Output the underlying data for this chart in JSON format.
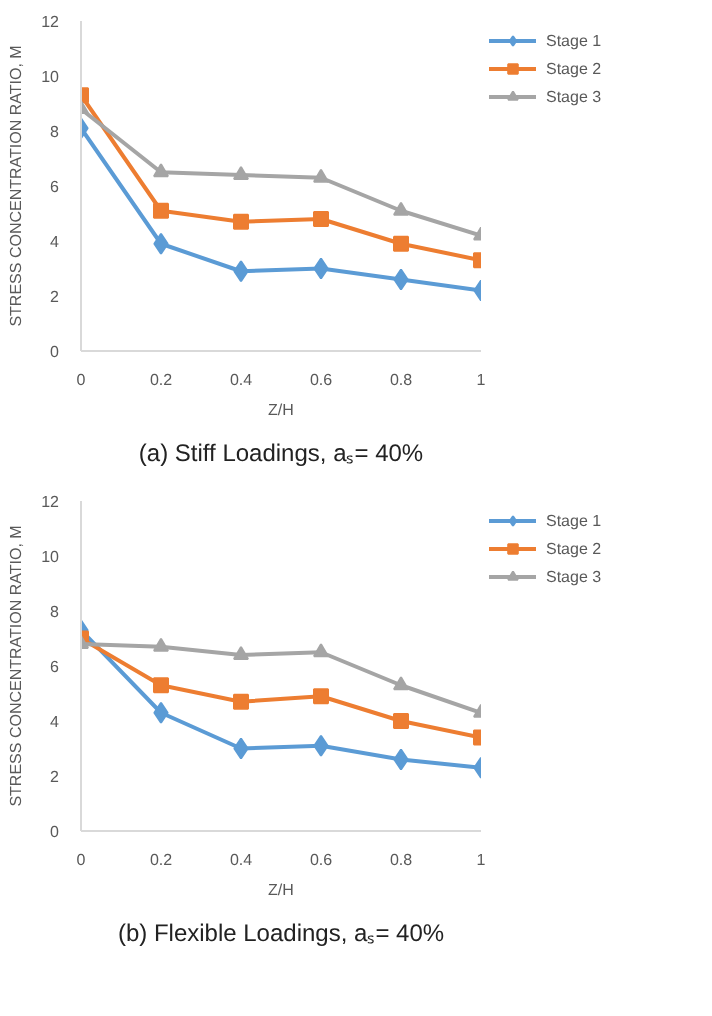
{
  "chart_data": [
    {
      "type": "line",
      "xlabel": "Z/H",
      "ylabel": "STRESS CONCENTRATION RATIO, M",
      "annotations": [
        "(a) Stiff Loadings, aₛ= 40%"
      ],
      "x": [
        0,
        0.2,
        0.4,
        0.6,
        0.8,
        1
      ],
      "xlim": [
        0,
        1
      ],
      "xticks": [
        0,
        0.2,
        0.4,
        0.6,
        0.8,
        1
      ],
      "ylim": [
        0,
        12
      ],
      "yticks": [
        0,
        2,
        4,
        6,
        8,
        10,
        12
      ],
      "grid": false,
      "legend": "right",
      "series": [
        {
          "name": "Stage 1",
          "color": "#5b9bd5",
          "marker": "diamond",
          "values": [
            8.1,
            3.9,
            2.9,
            3.0,
            2.6,
            2.2
          ]
        },
        {
          "name": "Stage 2",
          "color": "#ed7d31",
          "marker": "square",
          "values": [
            9.3,
            5.1,
            4.7,
            4.8,
            3.9,
            3.3
          ]
        },
        {
          "name": "Stage 3",
          "color": "#a5a5a5",
          "marker": "triangle",
          "values": [
            8.8,
            6.5,
            6.4,
            6.3,
            5.1,
            4.2
          ]
        }
      ]
    },
    {
      "type": "line",
      "xlabel": "Z/H",
      "ylabel": "STRESS CONCENTRATION RATIO, M",
      "annotations": [
        "(b) Flexible Loadings, aₛ= 40%"
      ],
      "x": [
        0,
        0.2,
        0.4,
        0.6,
        0.8,
        1
      ],
      "xlim": [
        0,
        1
      ],
      "xticks": [
        0,
        0.2,
        0.4,
        0.6,
        0.8,
        1
      ],
      "ylim": [
        0,
        12
      ],
      "yticks": [
        0,
        2,
        4,
        6,
        8,
        10,
        12
      ],
      "grid": false,
      "legend": "right",
      "series": [
        {
          "name": "Stage 1",
          "color": "#5b9bd5",
          "marker": "diamond",
          "values": [
            7.3,
            4.3,
            3.0,
            3.1,
            2.6,
            2.3
          ]
        },
        {
          "name": "Stage 2",
          "color": "#ed7d31",
          "marker": "square",
          "values": [
            7.0,
            5.3,
            4.7,
            4.9,
            4.0,
            3.4
          ]
        },
        {
          "name": "Stage 3",
          "color": "#a5a5a5",
          "marker": "triangle",
          "values": [
            6.8,
            6.7,
            6.4,
            6.5,
            5.3,
            4.3
          ]
        }
      ]
    }
  ]
}
